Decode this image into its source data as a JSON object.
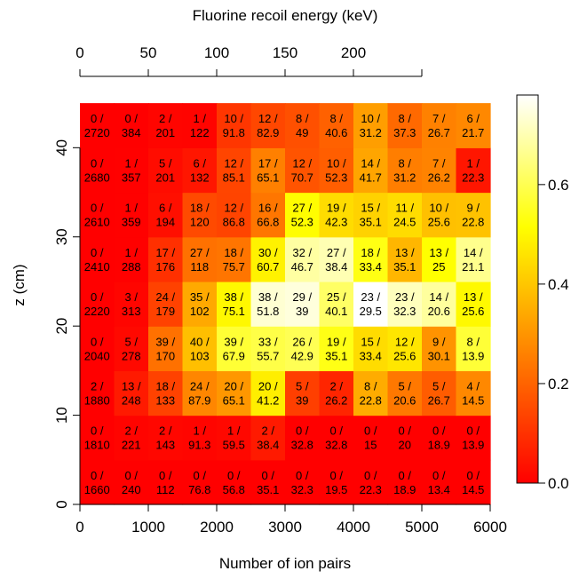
{
  "chart_data": {
    "type": "heatmap",
    "title": "",
    "xlabel": "Number of ion pairs",
    "ylabel": "z (cm)",
    "top_axis_label": "Fluorine recoil energy (keV)",
    "xlim": [
      0,
      6000
    ],
    "ylim": [
      0,
      48
    ],
    "x_ticks": [
      "0",
      "1000",
      "2000",
      "3000",
      "4000",
      "5000",
      "6000"
    ],
    "x_tick_values": [
      0,
      1000,
      2000,
      3000,
      4000,
      5000,
      6000
    ],
    "y_ticks": [
      "0",
      "10",
      "20",
      "30",
      "40"
    ],
    "y_tick_values": [
      0,
      10,
      20,
      30,
      40
    ],
    "top_ticks": [
      "0",
      "50",
      "100",
      "150",
      "200"
    ],
    "top_tick_values": [
      0,
      1000,
      2000,
      3000,
      4000,
      5000
    ],
    "x_bin_edges": [
      0,
      500,
      1000,
      1500,
      2000,
      2500,
      3000,
      3500,
      4000,
      4500,
      5000,
      5500,
      6000
    ],
    "y_bin_edges": [
      0,
      5,
      10,
      15,
      20,
      25,
      30,
      35,
      40,
      45,
      50
    ],
    "colorbar": {
      "range": [
        0,
        0.78
      ],
      "ticks": [
        "0.0",
        "0.2",
        "0.4",
        "0.6"
      ],
      "tick_values": [
        0.0,
        0.2,
        0.4,
        0.6
      ],
      "colors": [
        "#ff0000",
        "#ff8000",
        "#ffff00",
        "#ffffff"
      ]
    },
    "cells": [
      {
        "row": 0,
        "numerators": [
          "0",
          "0",
          "0",
          "0",
          "0",
          "0",
          "0",
          "0",
          "0",
          "0",
          "0",
          "0"
        ],
        "denominators": [
          "1660",
          "240",
          "112",
          "76.8",
          "56.8",
          "35.1",
          "32.3",
          "19.5",
          "22.3",
          "18.9",
          "13.4",
          "14.5"
        ]
      },
      {
        "row": 1,
        "numerators": [
          "0",
          "2",
          "2",
          "1",
          "1",
          "2",
          "0",
          "0",
          "0",
          "0",
          "0",
          "0"
        ],
        "denominators": [
          "1810",
          "221",
          "143",
          "91.3",
          "59.5",
          "38.4",
          "32.8",
          "32.8",
          "15",
          "20",
          "18.9",
          "13.9"
        ]
      },
      {
        "row": 2,
        "numerators": [
          "2",
          "13",
          "18",
          "24",
          "20",
          "20",
          "5",
          "2",
          "8",
          "5",
          "5",
          "4"
        ],
        "denominators": [
          "1880",
          "248",
          "133",
          "87.9",
          "65.1",
          "41.2",
          "39",
          "26.2",
          "22.8",
          "20.6",
          "26.7",
          "14.5"
        ]
      },
      {
        "row": 3,
        "numerators": [
          "0",
          "5",
          "39",
          "40",
          "39",
          "33",
          "26",
          "19",
          "15",
          "12",
          "9",
          "8"
        ],
        "denominators": [
          "2040",
          "278",
          "170",
          "103",
          "67.9",
          "55.7",
          "42.9",
          "35.1",
          "33.4",
          "25.6",
          "30.1",
          "13.9"
        ]
      },
      {
        "row": 4,
        "numerators": [
          "0",
          "3",
          "24",
          "35",
          "38",
          "38",
          "29",
          "25",
          "23",
          "23",
          "14",
          "13"
        ],
        "denominators": [
          "2220",
          "313",
          "179",
          "102",
          "75.1",
          "51.8",
          "39",
          "40.1",
          "29.5",
          "32.3",
          "20.6",
          "25.6"
        ]
      },
      {
        "row": 5,
        "numerators": [
          "0",
          "1",
          "17",
          "27",
          "18",
          "30",
          "32",
          "27",
          "18",
          "13",
          "13",
          "14"
        ],
        "denominators": [
          "2410",
          "288",
          "176",
          "118",
          "75.7",
          "60.7",
          "46.7",
          "38.4",
          "33.4",
          "35.1",
          "25",
          "21.1"
        ]
      },
      {
        "row": 6,
        "numerators": [
          "0",
          "1",
          "6",
          "18",
          "12",
          "16",
          "27",
          "19",
          "15",
          "11",
          "10",
          "9"
        ],
        "denominators": [
          "2610",
          "359",
          "194",
          "120",
          "86.8",
          "66.8",
          "52.3",
          "42.3",
          "35.1",
          "24.5",
          "25.6",
          "22.8"
        ]
      },
      {
        "row": 7,
        "numerators": [
          "0",
          "1",
          "5",
          "6",
          "12",
          "17",
          "12",
          "10",
          "14",
          "8",
          "7",
          "1"
        ],
        "denominators": [
          "2680",
          "357",
          "201",
          "132",
          "85.1",
          "65.1",
          "70.7",
          "52.3",
          "41.7",
          "31.2",
          "26.2",
          "22.3"
        ]
      },
      {
        "row": 8,
        "numerators": [
          "0",
          "0",
          "2",
          "1",
          "10",
          "12",
          "8",
          "8",
          "10",
          "8",
          "7",
          "6"
        ],
        "denominators": [
          "2720",
          "384",
          "201",
          "122",
          "91.8",
          "82.9",
          "49",
          "40.6",
          "31.2",
          "37.3",
          "26.7",
          "21.7"
        ]
      }
    ],
    "values": [
      [
        0.0,
        0.0,
        0.0,
        0.0,
        0.0,
        0.0,
        0.0,
        0.0,
        0.0,
        0.0,
        0.0,
        0.0
      ],
      [
        0.0,
        0.009,
        0.014,
        0.011,
        0.017,
        0.052,
        0.0,
        0.0,
        0.0,
        0.0,
        0.0,
        0.0
      ],
      [
        0.001,
        0.052,
        0.135,
        0.273,
        0.307,
        0.485,
        0.128,
        0.076,
        0.351,
        0.243,
        0.187,
        0.276
      ],
      [
        0.0,
        0.018,
        0.229,
        0.388,
        0.574,
        0.592,
        0.606,
        0.541,
        0.449,
        0.469,
        0.299,
        0.576
      ],
      [
        0.0,
        0.01,
        0.134,
        0.343,
        0.506,
        0.734,
        0.744,
        0.623,
        0.78,
        0.712,
        0.68,
        0.508
      ],
      [
        0.0,
        0.003,
        0.097,
        0.229,
        0.238,
        0.494,
        0.685,
        0.703,
        0.539,
        0.37,
        0.52,
        0.664
      ],
      [
        0.0,
        0.003,
        0.031,
        0.15,
        0.138,
        0.24,
        0.516,
        0.449,
        0.427,
        0.449,
        0.391,
        0.395
      ],
      [
        0.0,
        0.003,
        0.025,
        0.045,
        0.141,
        0.261,
        0.17,
        0.191,
        0.336,
        0.256,
        0.267,
        0.045
      ],
      [
        0.0,
        0.0,
        0.01,
        0.008,
        0.109,
        0.145,
        0.163,
        0.197,
        0.321,
        0.214,
        0.262,
        0.276
      ]
    ]
  }
}
